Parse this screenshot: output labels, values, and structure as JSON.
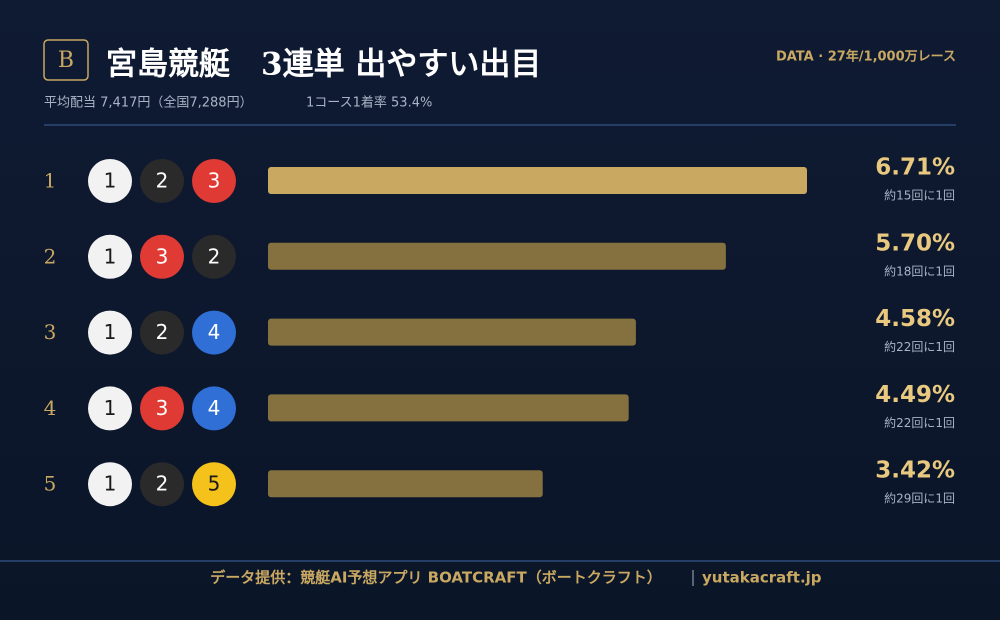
{
  "header": {
    "badge": "B",
    "title": "宮島競艇　3連単 出やすい出目",
    "subtitle_left": "平均配当 7,417円（全国7,288円）",
    "subtitle_right": "1コース1着率 53.4%",
    "source": "DATA · 27年/1,000万レース"
  },
  "footer": {
    "credit": "データ提供：競艇AI予想アプリ BOATCRAFT（ボートクラフト）",
    "site": "yutakacraft.jp"
  },
  "chart_data": {
    "type": "bar",
    "orientation": "horizontal",
    "categories": [
      "1",
      "2",
      "3",
      "4",
      "5"
    ],
    "combos": [
      [
        "1",
        "2",
        "3"
      ],
      [
        "1",
        "3",
        "2"
      ],
      [
        "1",
        "2",
        "4"
      ],
      [
        "1",
        "3",
        "4"
      ],
      [
        "1",
        "2",
        "5"
      ]
    ],
    "values": [
      6.71,
      5.7,
      4.58,
      4.49,
      3.42
    ],
    "value_labels": [
      "6.71%",
      "5.70%",
      "4.58%",
      "4.49%",
      "3.42%"
    ],
    "sub_labels": [
      "約15回に1回",
      "約18回に1回",
      "約22回に1回",
      "約22回に1回",
      "約29回に1回"
    ],
    "colors": [
      "#c9a862",
      "#85703f",
      "#85703f",
      "#85703f",
      "#85703f"
    ],
    "boat_colors": {
      "1": {
        "fill": "#f2f2f2",
        "text": "#1a1a1a"
      },
      "2": {
        "fill": "#2a2a2a",
        "text": "#ffffff"
      },
      "3": {
        "fill": "#e03a35",
        "text": "#ffffff"
      },
      "4": {
        "fill": "#2f6fd6",
        "text": "#ffffff"
      },
      "5": {
        "fill": "#f4c21a",
        "text": "#1a1a1a"
      }
    }
  }
}
